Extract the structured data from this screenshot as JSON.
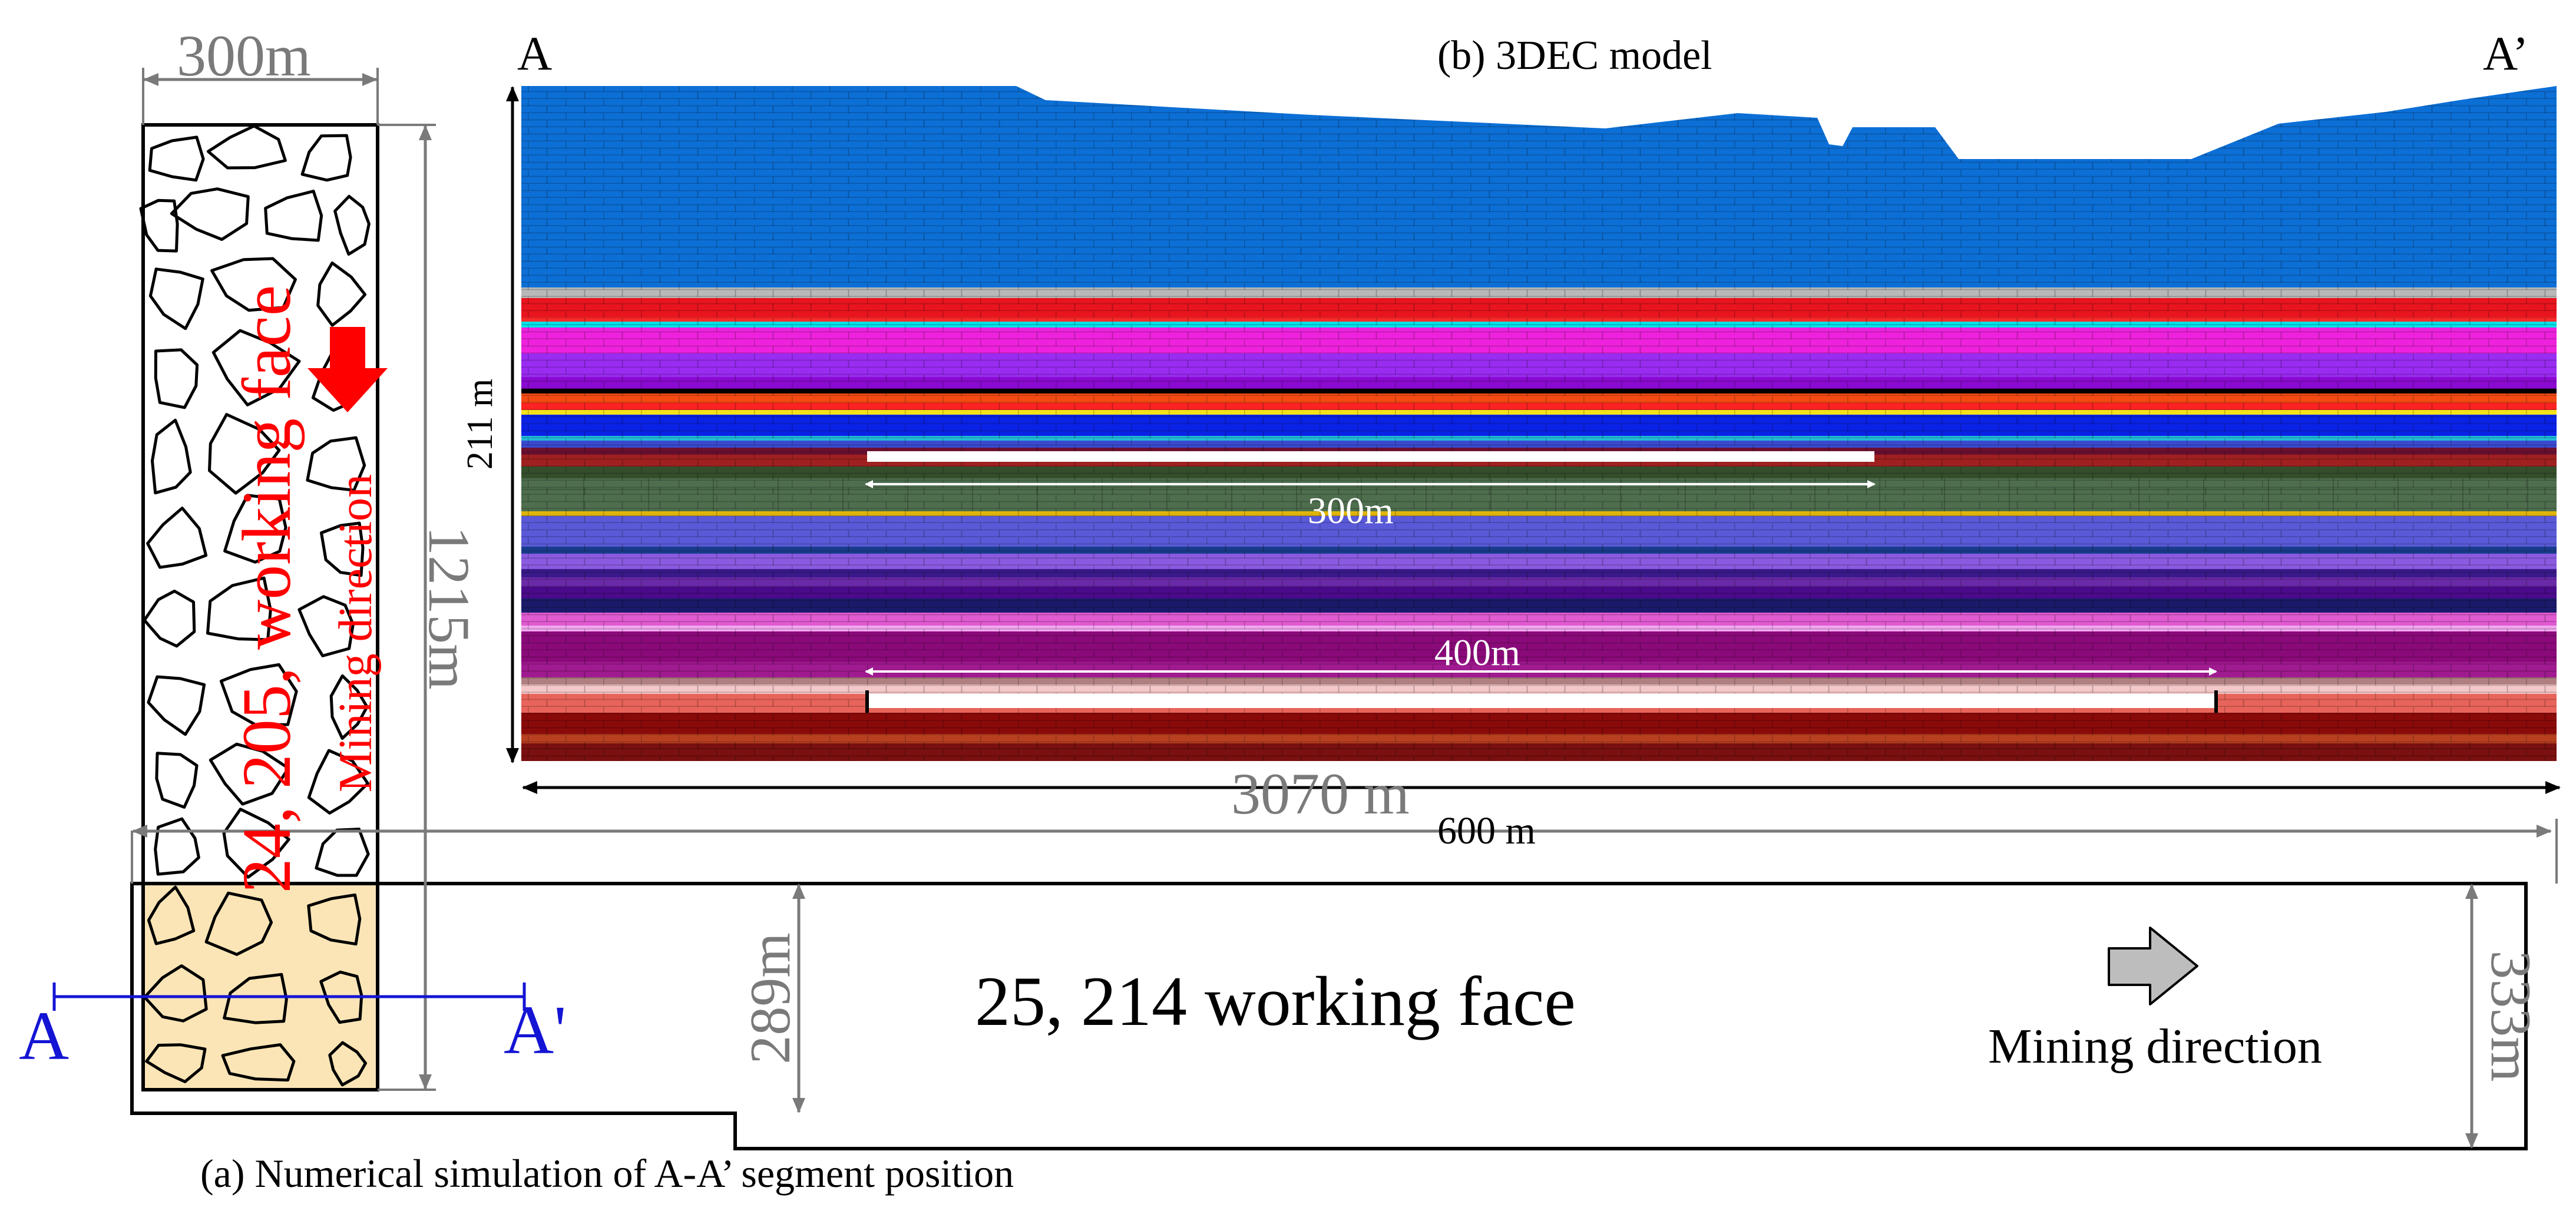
{
  "panel_b": {
    "title": "(b) 3DEC model",
    "label_left": "A",
    "label_right": "A’",
    "height_label": "211 m",
    "goaf_upper_label": "300m",
    "goaf_lower_label": "400m",
    "width_label": "600 m"
  },
  "panel_a": {
    "caption": "(a) Numerical simulation of A-A’ segment position",
    "top_width_label": "300m",
    "strip_length_label": "1215m",
    "upper_face_label": "24, 205, working face",
    "upper_direction_label": "Mining direction",
    "total_length_label": "3070 m",
    "lower_face_label": "25, 214 working face",
    "lower_direction_label": "Mining direction",
    "left_height_label": "289m",
    "right_height_label": "333m",
    "section_label_left": "A",
    "section_label_right": "A'"
  },
  "colors": {
    "sky_blue": "#0c6fd6",
    "outline": "#000000",
    "dim_grey": "#7a7a7a",
    "section_blue": "#1414d4",
    "arrow_red": "#ff0000",
    "sand": "#fbe5b6"
  }
}
